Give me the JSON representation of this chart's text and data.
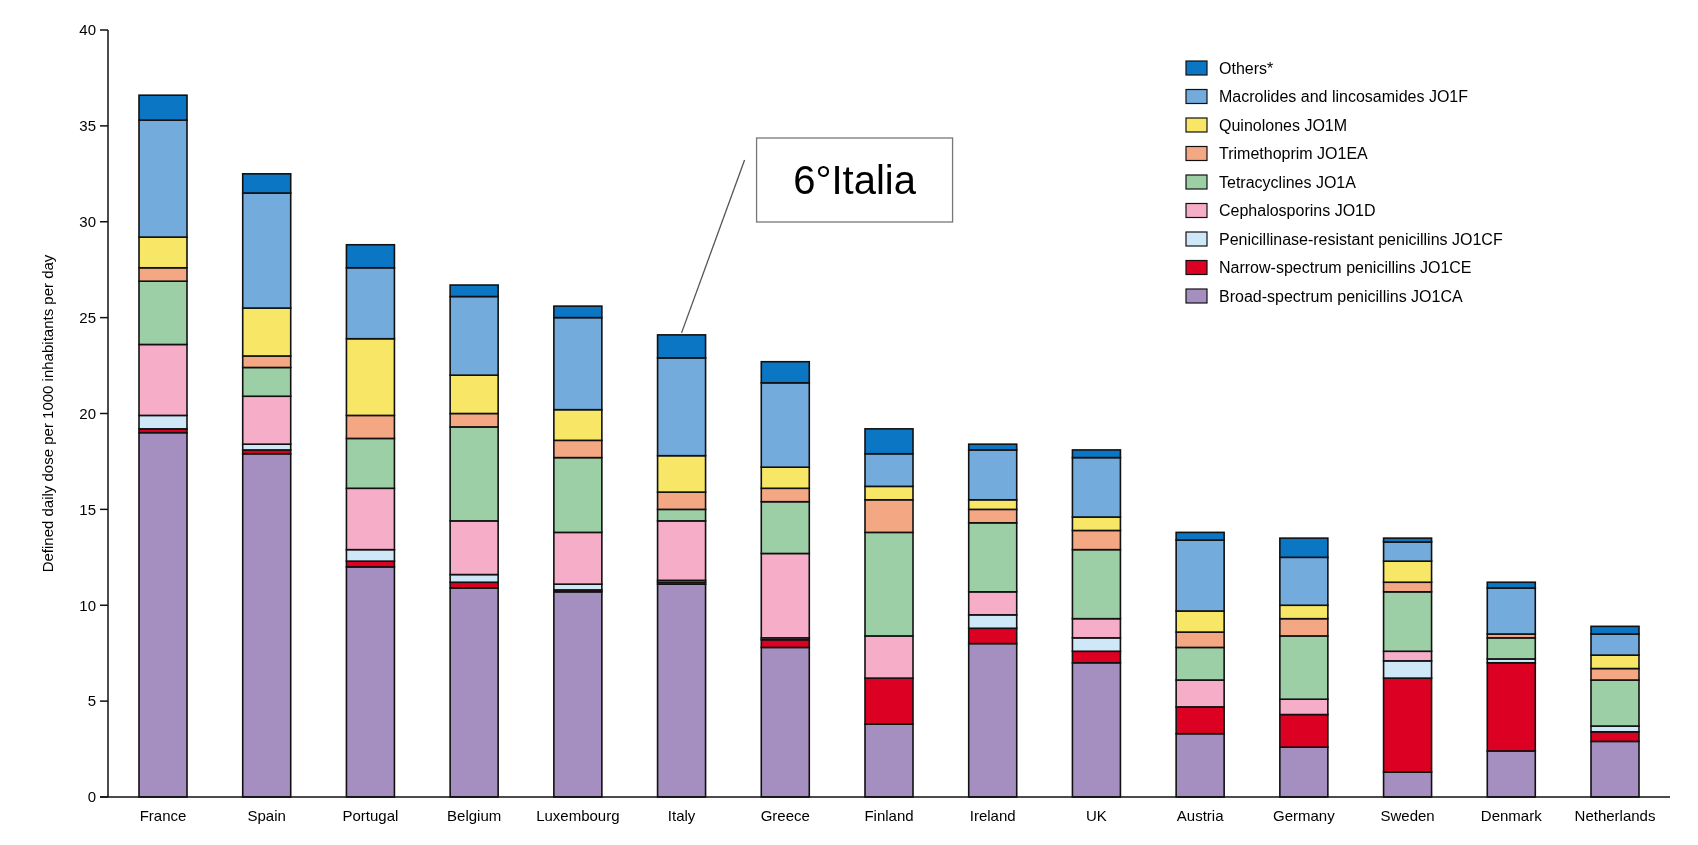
{
  "chart_data": {
    "type": "bar",
    "stacked": true,
    "ylabel": "Defined daily dose per 1000 inhabitants per day",
    "categories": [
      "France",
      "Spain",
      "Portugal",
      "Belgium",
      "Luxembourg",
      "Italy",
      "Greece",
      "Finland",
      "Ireland",
      "UK",
      "Austria",
      "Germany",
      "Sweden",
      "Denmark",
      "Netherlands"
    ],
    "series": [
      {
        "name": "Broad-spectrum penicillins JO1CA",
        "color": "#a48fc0",
        "values": [
          19.0,
          17.9,
          12.0,
          10.9,
          10.7,
          11.1,
          7.8,
          3.8,
          8.0,
          7.0,
          3.3,
          2.6,
          1.3,
          2.4,
          2.9
        ]
      },
      {
        "name": "Narrow-spectrum penicillins JO1CE",
        "color": "#dc0022",
        "values": [
          0.2,
          0.2,
          0.3,
          0.3,
          0.1,
          0.1,
          0.4,
          2.4,
          0.8,
          0.6,
          1.4,
          1.7,
          4.9,
          4.6,
          0.5
        ]
      },
      {
        "name": "Penicillinase-resistant penicillins JO1CF",
        "color": "#cfe8f8",
        "values": [
          0.7,
          0.3,
          0.6,
          0.4,
          0.3,
          0.1,
          0.1,
          0,
          0.7,
          0.7,
          0,
          0,
          0.9,
          0.2,
          0.3
        ]
      },
      {
        "name": "Cephalosporins JO1D",
        "color": "#f6adc8",
        "values": [
          3.7,
          2.5,
          3.2,
          2.8,
          2.7,
          3.1,
          4.4,
          2.2,
          1.2,
          1.0,
          1.4,
          0.8,
          0.5,
          0,
          0
        ]
      },
      {
        "name": "Tetracyclines JO1A",
        "color": "#9ccfa6",
        "values": [
          3.3,
          1.5,
          2.6,
          4.9,
          3.9,
          0.6,
          2.7,
          5.4,
          3.6,
          3.6,
          1.7,
          3.3,
          3.1,
          1.1,
          2.4
        ]
      },
      {
        "name": "Trimethoprim JO1EA",
        "color": "#f3a883",
        "values": [
          0.7,
          0.6,
          1.2,
          0.7,
          0.9,
          0.9,
          0.7,
          1.7,
          0.7,
          1.0,
          0.8,
          0.9,
          0.5,
          0.2,
          0.6
        ]
      },
      {
        "name": "Quinolones JO1M",
        "color": "#f8e766",
        "values": [
          1.6,
          2.5,
          4.0,
          2.0,
          1.6,
          1.9,
          1.1,
          0.7,
          0.5,
          0.7,
          1.1,
          0.7,
          1.1,
          0,
          0.7
        ]
      },
      {
        "name": "Macrolides and lincosamides JO1F",
        "color": "#73abdd",
        "values": [
          6.1,
          6.0,
          3.7,
          4.1,
          4.8,
          5.1,
          4.4,
          1.7,
          2.6,
          3.1,
          3.7,
          2.5,
          1.0,
          2.4,
          1.1
        ]
      },
      {
        "name": "Others*",
        "color": "#0a76c4",
        "values": [
          1.3,
          1.0,
          1.2,
          0.6,
          0.6,
          1.2,
          1.1,
          1.3,
          0.3,
          0.4,
          0.4,
          1.0,
          0.2,
          0.3,
          0.4
        ]
      }
    ],
    "ylim": [
      0,
      40
    ],
    "yticks": [
      0,
      5,
      10,
      15,
      20,
      25,
      30,
      35,
      40
    ],
    "legend": "top right",
    "annotations": [
      {
        "text": "6°Italia",
        "x": "Italy",
        "y": 24.1
      }
    ]
  }
}
